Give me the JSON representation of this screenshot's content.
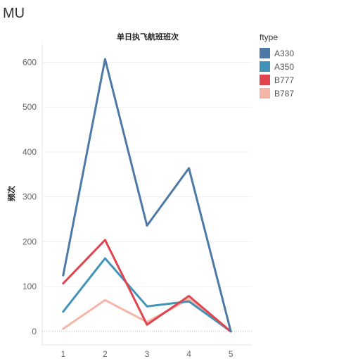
{
  "page": {
    "title": "MU"
  },
  "chart_data": {
    "type": "line",
    "title": "单日执飞航班班次",
    "xlabel": "",
    "ylabel": "频次",
    "x": [
      1,
      2,
      3,
      4,
      5
    ],
    "xlim": [
      0.5,
      5.5
    ],
    "ylim": [
      -30,
      640
    ],
    "yticks": [
      0,
      100,
      200,
      300,
      400,
      500,
      600
    ],
    "grid": true,
    "zero_line": "dotted",
    "legend": {
      "title": "ftype",
      "position": "right"
    },
    "series": [
      {
        "name": "A330",
        "color": "#4e79a7",
        "values": [
          125,
          607,
          236,
          364,
          0
        ]
      },
      {
        "name": "A350",
        "color": "#4194b8",
        "values": [
          44,
          163,
          56,
          67,
          0
        ]
      },
      {
        "name": "B777",
        "color": "#e0454f",
        "values": [
          107,
          204,
          15,
          79,
          0
        ]
      },
      {
        "name": "B787",
        "color": "#f5b6a6",
        "values": [
          6,
          70,
          21,
          72,
          0
        ]
      }
    ]
  }
}
